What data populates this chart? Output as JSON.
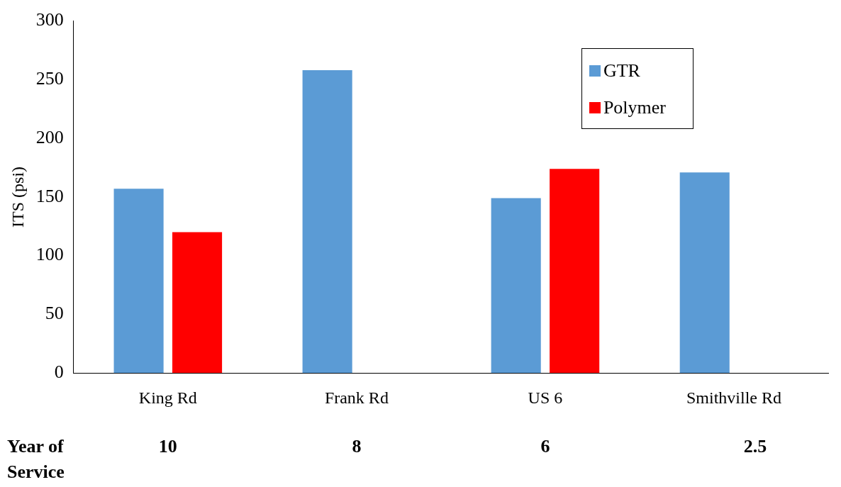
{
  "chart_data": {
    "type": "bar",
    "categories": [
      "King Rd",
      "Frank Rd",
      "US 6",
      "Smithville Rd"
    ],
    "series": [
      {
        "name": "GTR",
        "color": "#5b9bd5",
        "values": [
          157,
          258,
          149,
          171
        ]
      },
      {
        "name": "Polymer",
        "color": "#ff0000",
        "values": [
          120,
          null,
          174,
          null
        ]
      }
    ],
    "ylabel": "ITS (psi)",
    "ylim": [
      0,
      300
    ],
    "yticks": [
      0,
      50,
      100,
      150,
      200,
      250,
      300
    ],
    "grid": false,
    "legend": "top right",
    "annotations": [
      "Year of Service",
      "10",
      "8",
      "6",
      "2.5"
    ]
  }
}
